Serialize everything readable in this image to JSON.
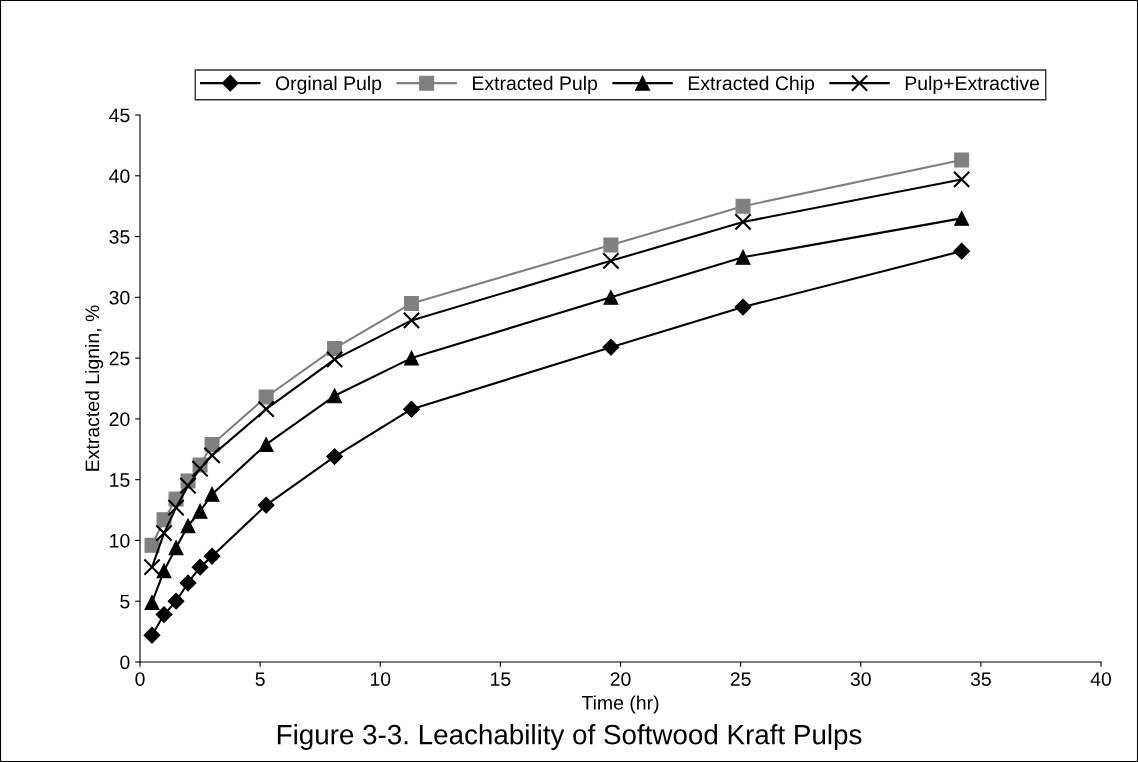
{
  "chart_data": {
    "type": "line",
    "title": "Figure 3-3. Leachability of Softwood Kraft Pulps",
    "xlabel": "Time (hr)",
    "ylabel": "Extracted Lignin, %",
    "x": [
      0.5,
      1,
      1.5,
      2,
      2.5,
      3,
      5.25,
      8.1,
      11.3,
      19.6,
      25.1,
      34.2
    ],
    "series": [
      {
        "name": "Orginal Pulp",
        "color": "#000000",
        "marker": "diamond",
        "values": [
          2.2,
          3.9,
          5.0,
          6.5,
          7.8,
          8.7,
          12.9,
          16.9,
          20.8,
          25.9,
          29.2,
          33.8
        ]
      },
      {
        "name": "Extracted Pulp",
        "color": "#808080",
        "marker": "square",
        "values": [
          9.6,
          11.7,
          13.4,
          14.9,
          16.2,
          17.9,
          21.8,
          25.8,
          29.5,
          34.3,
          37.5,
          41.3
        ]
      },
      {
        "name": "Extracted Chip",
        "color": "#000000",
        "marker": "triangle",
        "values": [
          4.9,
          7.5,
          9.4,
          11.2,
          12.4,
          13.8,
          17.9,
          21.9,
          25.0,
          30.0,
          33.3,
          36.5
        ]
      },
      {
        "name": "Pulp+Extractive",
        "color": "#000000",
        "marker": "cross",
        "values": [
          7.8,
          10.6,
          12.7,
          14.5,
          15.9,
          17.0,
          20.8,
          24.9,
          28.1,
          33.0,
          36.2,
          39.7
        ]
      }
    ],
    "xlim": [
      0,
      40
    ],
    "xticks": [
      0,
      5,
      10,
      15,
      20,
      25,
      30,
      35,
      40
    ],
    "ylim": [
      0,
      45
    ],
    "yticks": [
      0,
      5,
      10,
      15,
      20,
      25,
      30,
      35,
      40,
      45
    ],
    "grid": false,
    "legend": "top",
    "line_style": "solid"
  }
}
